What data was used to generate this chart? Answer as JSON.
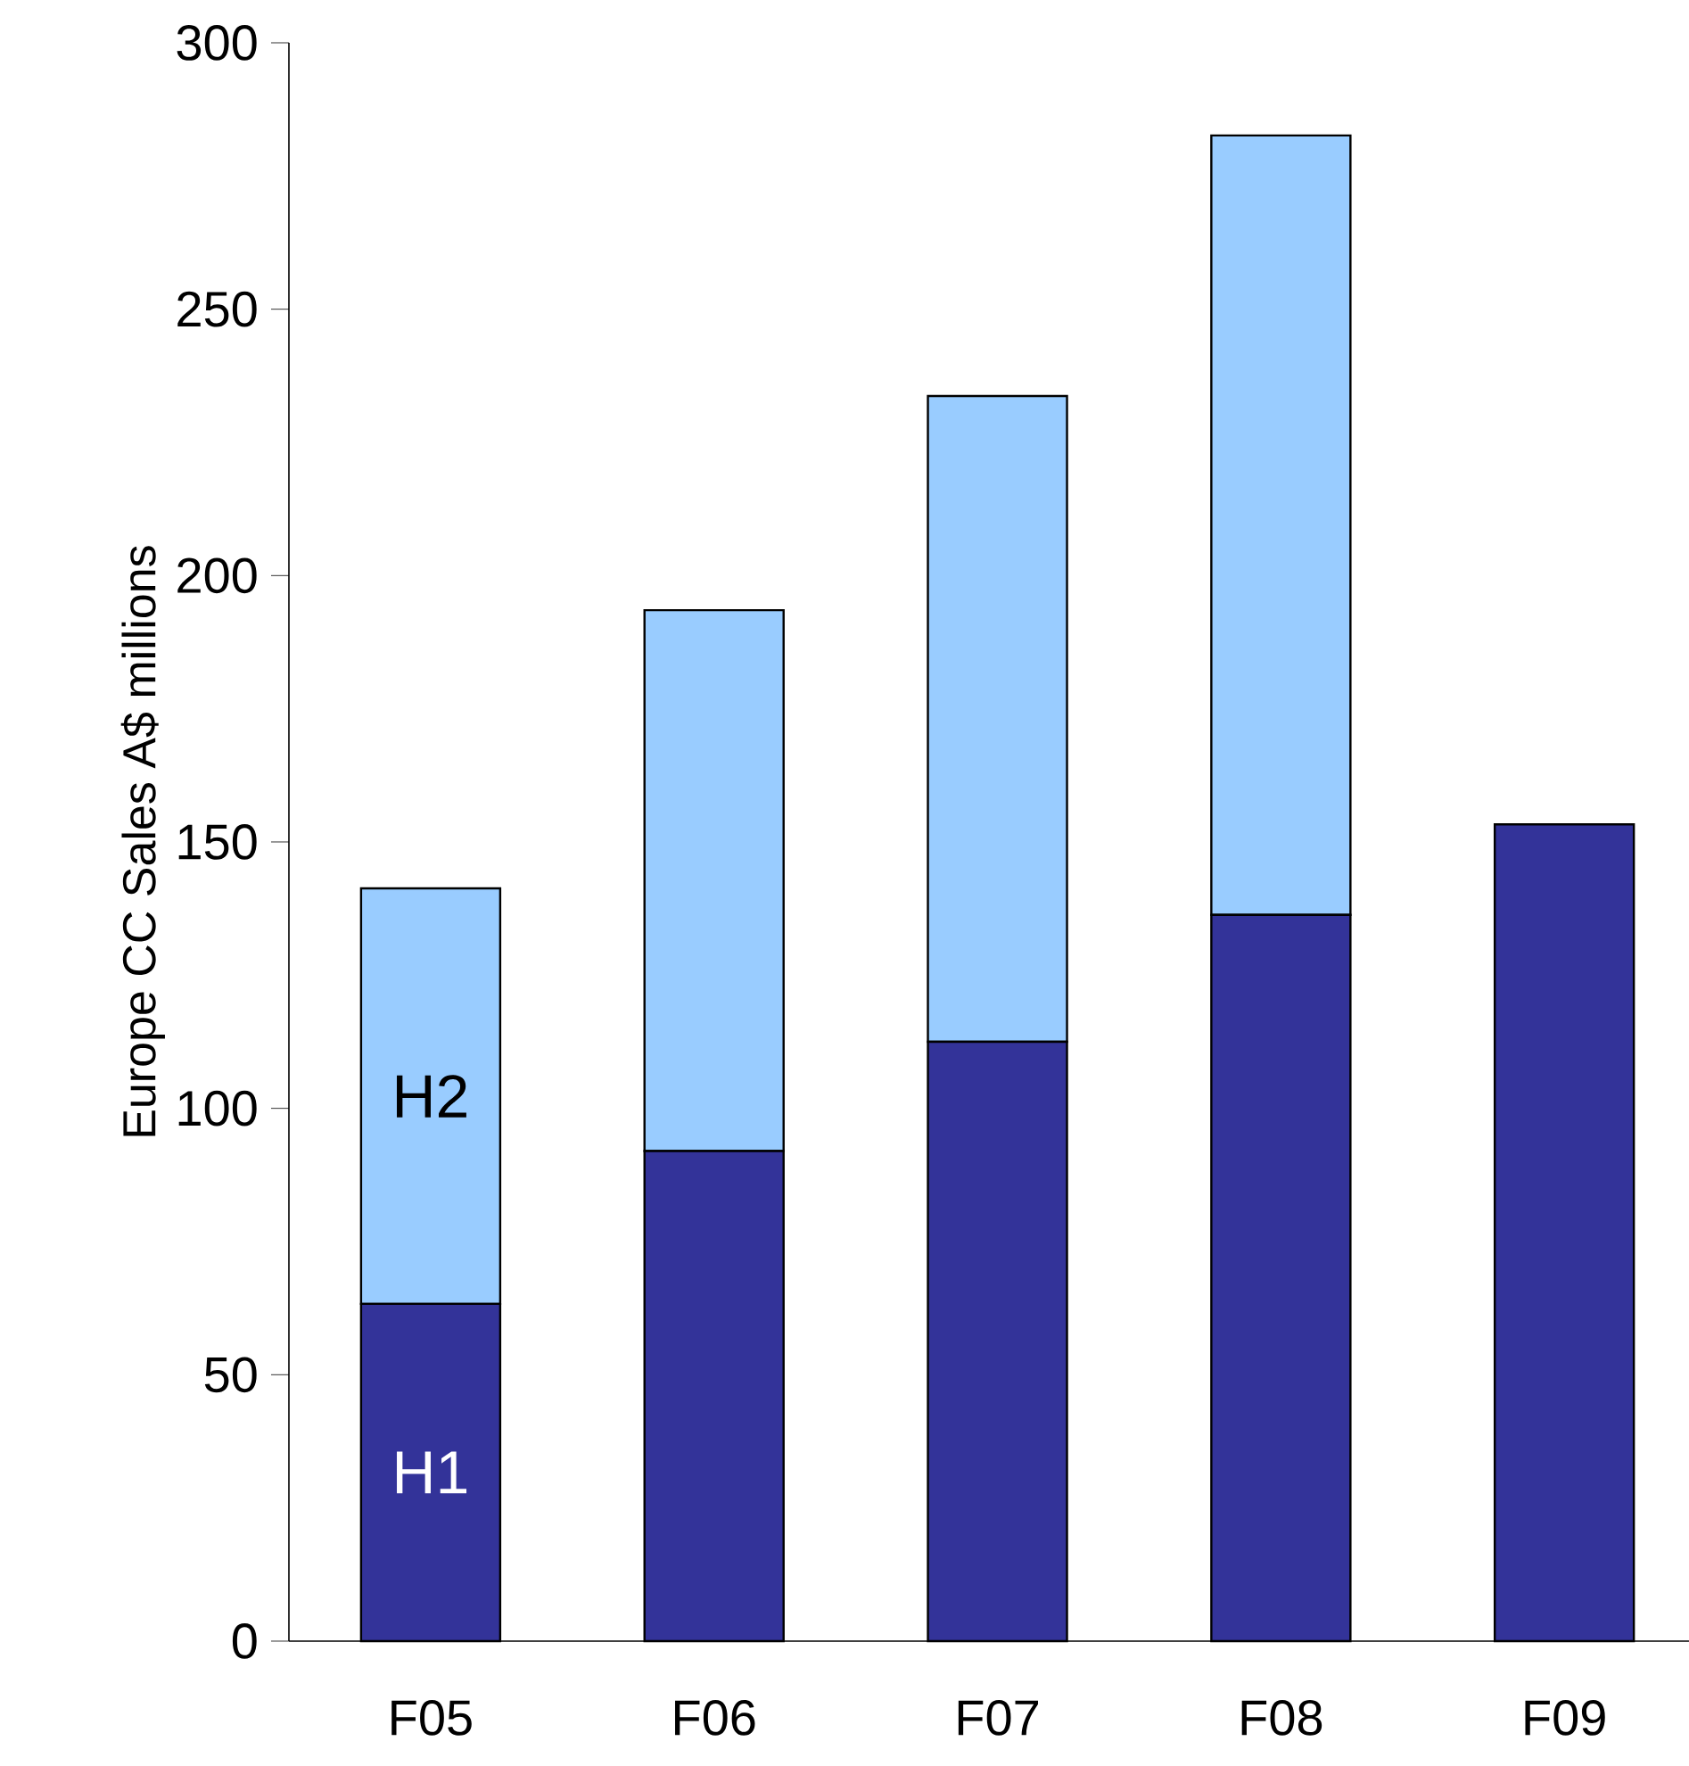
{
  "chart_data": {
    "type": "bar",
    "stacked": true,
    "ylabel": "Europe CC Sales A$ millions",
    "categories": [
      "F05",
      "F06",
      "F07",
      "F08",
      "F09"
    ],
    "series": [
      {
        "name": "H1",
        "color": "#333399",
        "values": [
          63.3,
          92,
          112.5,
          136.3,
          153.3
        ]
      },
      {
        "name": "H2",
        "color": "#99ccff",
        "values": [
          78,
          101.5,
          121.2,
          146.3,
          null
        ]
      }
    ],
    "ylim": [
      0,
      300
    ],
    "yticks": [
      0,
      50,
      100,
      150,
      200,
      250,
      300
    ],
    "grid": false,
    "legend": false
  }
}
